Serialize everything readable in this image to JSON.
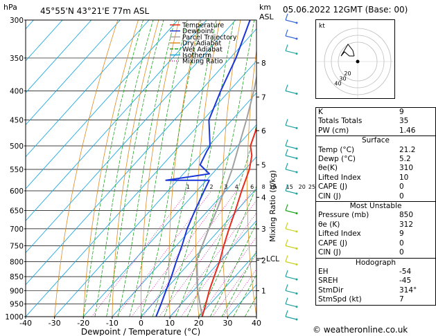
{
  "header": {
    "location": "45°55'N 43°21'E 77m ASL",
    "datetime": "05.06.2022 12GMT (Base: 00)",
    "hpa_label": "hPa",
    "km_label": "km",
    "asl_label": "ASL"
  },
  "legend": [
    "Temperature",
    "Dewpoint",
    "Parcel Trajectory",
    "Dry Adiabat",
    "Wet Adiabat",
    "Isotherm",
    "Mixing Ratio"
  ],
  "colors": {
    "temperature": "#e8291c",
    "dewpoint": "#1a35d8",
    "parcel": "#a0a0a0",
    "dry_adiabat": "#e08a1e",
    "wet_adiabat": "#21a321",
    "isotherm": "#19a7e0",
    "mixing_ratio": "#d0199a"
  },
  "chart_data": {
    "type": "skew-t",
    "xlabel": "Dewpoint / Temperature (°C)",
    "ylabel": "Mixing Ratio (g/kg)",
    "xlim": [
      -40,
      40
    ],
    "ylim": [
      1000,
      300
    ],
    "x_ticks": [
      "-40",
      "-30",
      "-20",
      "-10",
      "0",
      "10",
      "20",
      "30",
      "40"
    ],
    "pressure_ticks": [
      300,
      350,
      400,
      450,
      500,
      550,
      600,
      650,
      700,
      750,
      800,
      850,
      900,
      950,
      1000
    ],
    "height_ticks_km": [
      {
        "km": "8",
        "p": 357
      },
      {
        "km": "7",
        "p": 410
      },
      {
        "km": "6",
        "p": 470
      },
      {
        "km": "5",
        "p": 540
      },
      {
        "km": "4",
        "p": 616
      },
      {
        "km": "3",
        "p": 700
      },
      {
        "km": "2",
        "p": 795
      },
      {
        "km": "1",
        "p": 900
      }
    ],
    "lcl_label": "LCL",
    "lcl_pressure": 790,
    "mixing_ratio_labels": [
      "1",
      "2",
      "3",
      "4",
      "6",
      "8",
      "10",
      "15",
      "20",
      "25"
    ],
    "temperature": [
      {
        "p": 1000,
        "t": 21.2
      },
      {
        "p": 950,
        "t": 18.5
      },
      {
        "p": 900,
        "t": 15.5
      },
      {
        "p": 850,
        "t": 12.8
      },
      {
        "p": 800,
        "t": 10.0
      },
      {
        "p": 750,
        "t": 6.5
      },
      {
        "p": 700,
        "t": 3.0
      },
      {
        "p": 650,
        "t": -0.5
      },
      {
        "p": 600,
        "t": -4.5
      },
      {
        "p": 550,
        "t": -8.5
      },
      {
        "p": 520,
        "t": -12.0
      },
      {
        "p": 500,
        "t": -15.5
      },
      {
        "p": 450,
        "t": -20.5
      },
      {
        "p": 400,
        "t": -27.0
      },
      {
        "p": 350,
        "t": -35.0
      },
      {
        "p": 300,
        "t": -44.0
      }
    ],
    "dewpoint": [
      {
        "p": 1000,
        "t": 5.2
      },
      {
        "p": 950,
        "t": 3.0
      },
      {
        "p": 900,
        "t": 0.5
      },
      {
        "p": 850,
        "t": -2.0
      },
      {
        "p": 800,
        "t": -5.0
      },
      {
        "p": 750,
        "t": -8.0
      },
      {
        "p": 700,
        "t": -11.5
      },
      {
        "p": 650,
        "t": -14.5
      },
      {
        "p": 600,
        "t": -17.5
      },
      {
        "p": 575,
        "t": -19.0
      },
      {
        "p": 575,
        "t": -34.0
      },
      {
        "p": 560,
        "t": -21.0
      },
      {
        "p": 540,
        "t": -27.0
      },
      {
        "p": 510,
        "t": -29.0
      },
      {
        "p": 500,
        "t": -29.5
      },
      {
        "p": 450,
        "t": -38.0
      },
      {
        "p": 400,
        "t": -43.0
      },
      {
        "p": 350,
        "t": -48.0
      },
      {
        "p": 300,
        "t": -55.0
      }
    ],
    "parcel": [
      {
        "p": 1000,
        "t": 21.2
      },
      {
        "p": 900,
        "t": 11.5
      },
      {
        "p": 790,
        "t": 1.2
      },
      {
        "p": 750,
        "t": -1.0
      },
      {
        "p": 700,
        "t": -4.0
      },
      {
        "p": 650,
        "t": -7.0
      },
      {
        "p": 600,
        "t": -10.5
      },
      {
        "p": 550,
        "t": -14.5
      },
      {
        "p": 500,
        "t": -19.5
      },
      {
        "p": 450,
        "t": -25.0
      },
      {
        "p": 400,
        "t": -31.5
      },
      {
        "p": 350,
        "t": -39.5
      },
      {
        "p": 300,
        "t": -49.0
      }
    ]
  },
  "hodograph": {
    "label": "kt",
    "ring_labels": [
      "20",
      "30",
      "40"
    ]
  },
  "indices": [
    {
      "key": "K",
      "value": "9"
    },
    {
      "key": "Totals Totals",
      "value": "35"
    },
    {
      "key": "PW (cm)",
      "value": "1.46"
    }
  ],
  "surface": {
    "title": "Surface",
    "rows": [
      {
        "key": "Temp (°C)",
        "value": "21.2"
      },
      {
        "key": "Dewp (°C)",
        "value": "5.2"
      },
      {
        "key": "θe(K)",
        "value": "310"
      },
      {
        "key": "Lifted Index",
        "value": "10"
      },
      {
        "key": "CAPE (J)",
        "value": "0"
      },
      {
        "key": "CIN (J)",
        "value": "0"
      }
    ]
  },
  "most_unstable": {
    "title": "Most Unstable",
    "rows": [
      {
        "key": "Pressure (mb)",
        "value": "850"
      },
      {
        "key": "θe (K)",
        "value": "312"
      },
      {
        "key": "Lifted Index",
        "value": "9"
      },
      {
        "key": "CAPE (J)",
        "value": "0"
      },
      {
        "key": "CIN (J)",
        "value": "0"
      }
    ]
  },
  "hodograph_table": {
    "title": "Hodograph",
    "rows": [
      {
        "key": "EH",
        "value": "-54"
      },
      {
        "key": "SREH",
        "value": "-45"
      },
      {
        "key": "StmDir",
        "value": "314°"
      },
      {
        "key": "StmSpd (kt)",
        "value": "7"
      }
    ]
  },
  "footer": "© weatheronline.co.uk"
}
